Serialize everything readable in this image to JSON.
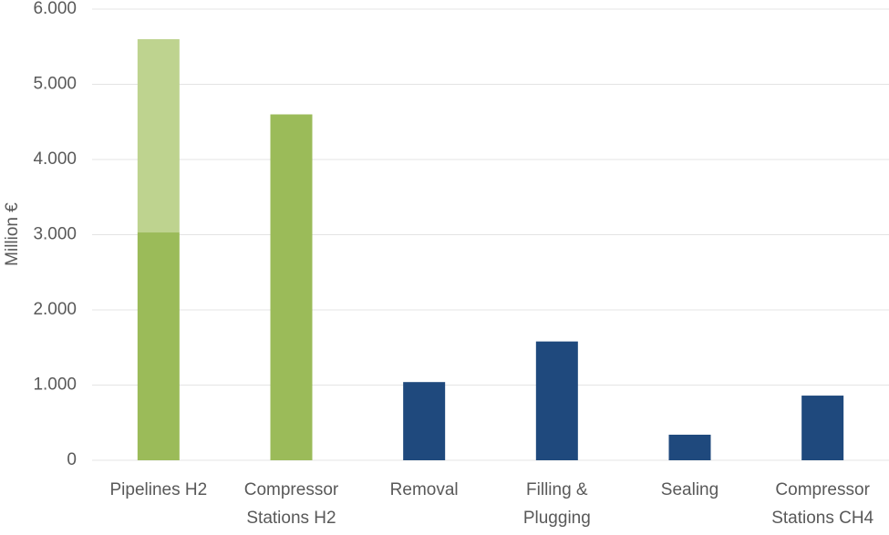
{
  "chart_data": {
    "type": "bar",
    "stacked": true,
    "y_label": "Million €",
    "categories": [
      "Pipelines H2",
      "Compressor\nStations H2",
      "Removal",
      "Filling &\nPlugging",
      "Sealing",
      "Compressor\nStations CH4"
    ],
    "series": [
      {
        "color": "#9bbb59",
        "values": [
          3030,
          4600,
          null,
          null,
          null,
          null
        ]
      },
      {
        "color": "#bed38f",
        "values": [
          2570,
          null,
          null,
          null,
          null,
          null
        ]
      },
      {
        "color": "#1f497d",
        "values": [
          null,
          null,
          1040,
          1580,
          340,
          860
        ]
      }
    ],
    "ylim": [
      0,
      6000
    ],
    "yticks": [
      0,
      {
        "value": 1000,
        "label": "1.000"
      },
      {
        "value": 2000,
        "label": "2.000"
      },
      {
        "value": 3000,
        "label": "3.000"
      },
      {
        "value": 4000,
        "label": "4.000"
      },
      {
        "value": 5000,
        "label": "5.000"
      },
      {
        "value": 6000,
        "label": "6.000"
      }
    ],
    "grid": true
  }
}
